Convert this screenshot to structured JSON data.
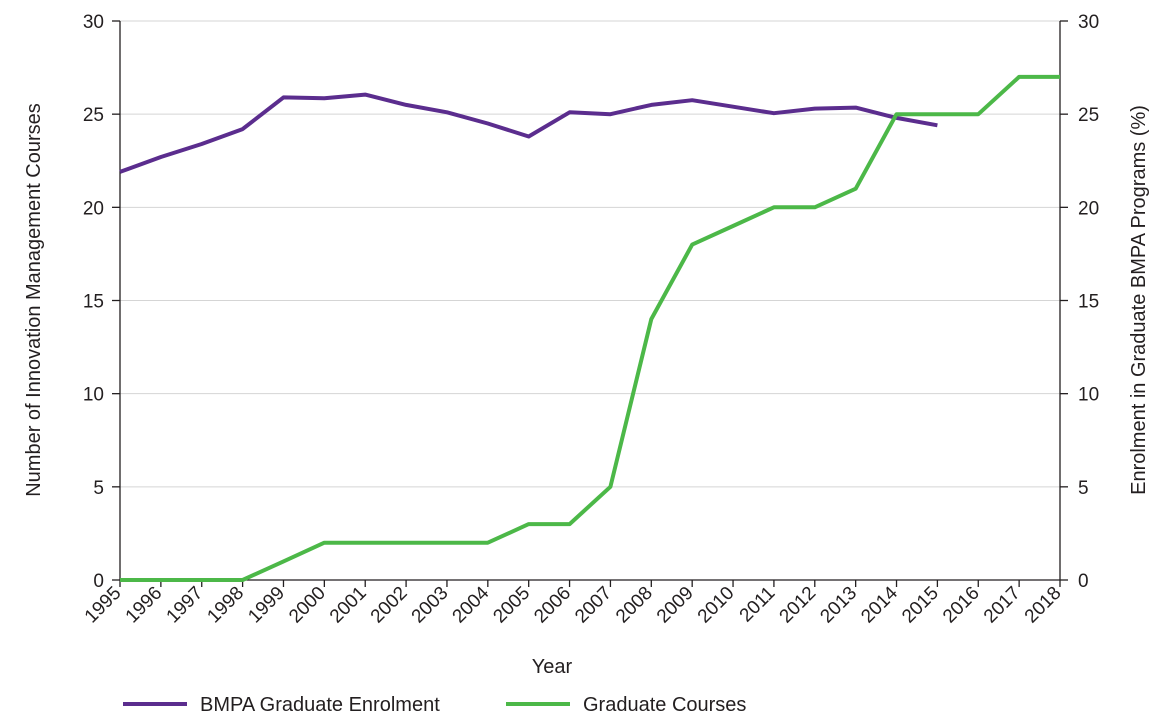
{
  "chart_data": {
    "type": "line",
    "title": "",
    "xlabel": "Year",
    "ylabel_left": "Number of Innovation Management Courses",
    "ylabel_right": "Enrolment in Graduate BMPA Programs (%)",
    "ylim_left": [
      0,
      30
    ],
    "ylim_right": [
      0,
      30
    ],
    "yticks_left": [
      "0",
      "5",
      "10",
      "15",
      "20",
      "25",
      "30"
    ],
    "yticks_right": [
      "0",
      "5",
      "10",
      "15",
      "20",
      "25",
      "30"
    ],
    "grid": "horizontal",
    "legend_position": "bottom",
    "categories": [
      "1995",
      "1996",
      "1997",
      "1998",
      "1999",
      "2000",
      "2001",
      "2002",
      "2003",
      "2004",
      "2005",
      "2006",
      "2007",
      "2008",
      "2009",
      "2010",
      "2011",
      "2012",
      "2013",
      "2014",
      "2015",
      "2016",
      "2017",
      "2018"
    ],
    "series": [
      {
        "name": "BMPA Graduate Enrolment",
        "axis": "right",
        "color": "#5b2d8e",
        "values": [
          21.9,
          22.7,
          23.4,
          24.2,
          25.9,
          25.85,
          26.05,
          25.5,
          25.1,
          24.5,
          23.8,
          25.1,
          25.0,
          25.5,
          25.75,
          25.4,
          25.05,
          25.3,
          25.35,
          24.8,
          24.4,
          null,
          null,
          null
        ]
      },
      {
        "name": "Graduate Courses",
        "axis": "left",
        "color": "#4cb848",
        "values": [
          0,
          0,
          0,
          0,
          1,
          2,
          2,
          2,
          2,
          2,
          3,
          3,
          5,
          14,
          18,
          19,
          20,
          20,
          21,
          25,
          25,
          25,
          27,
          27
        ]
      }
    ]
  }
}
